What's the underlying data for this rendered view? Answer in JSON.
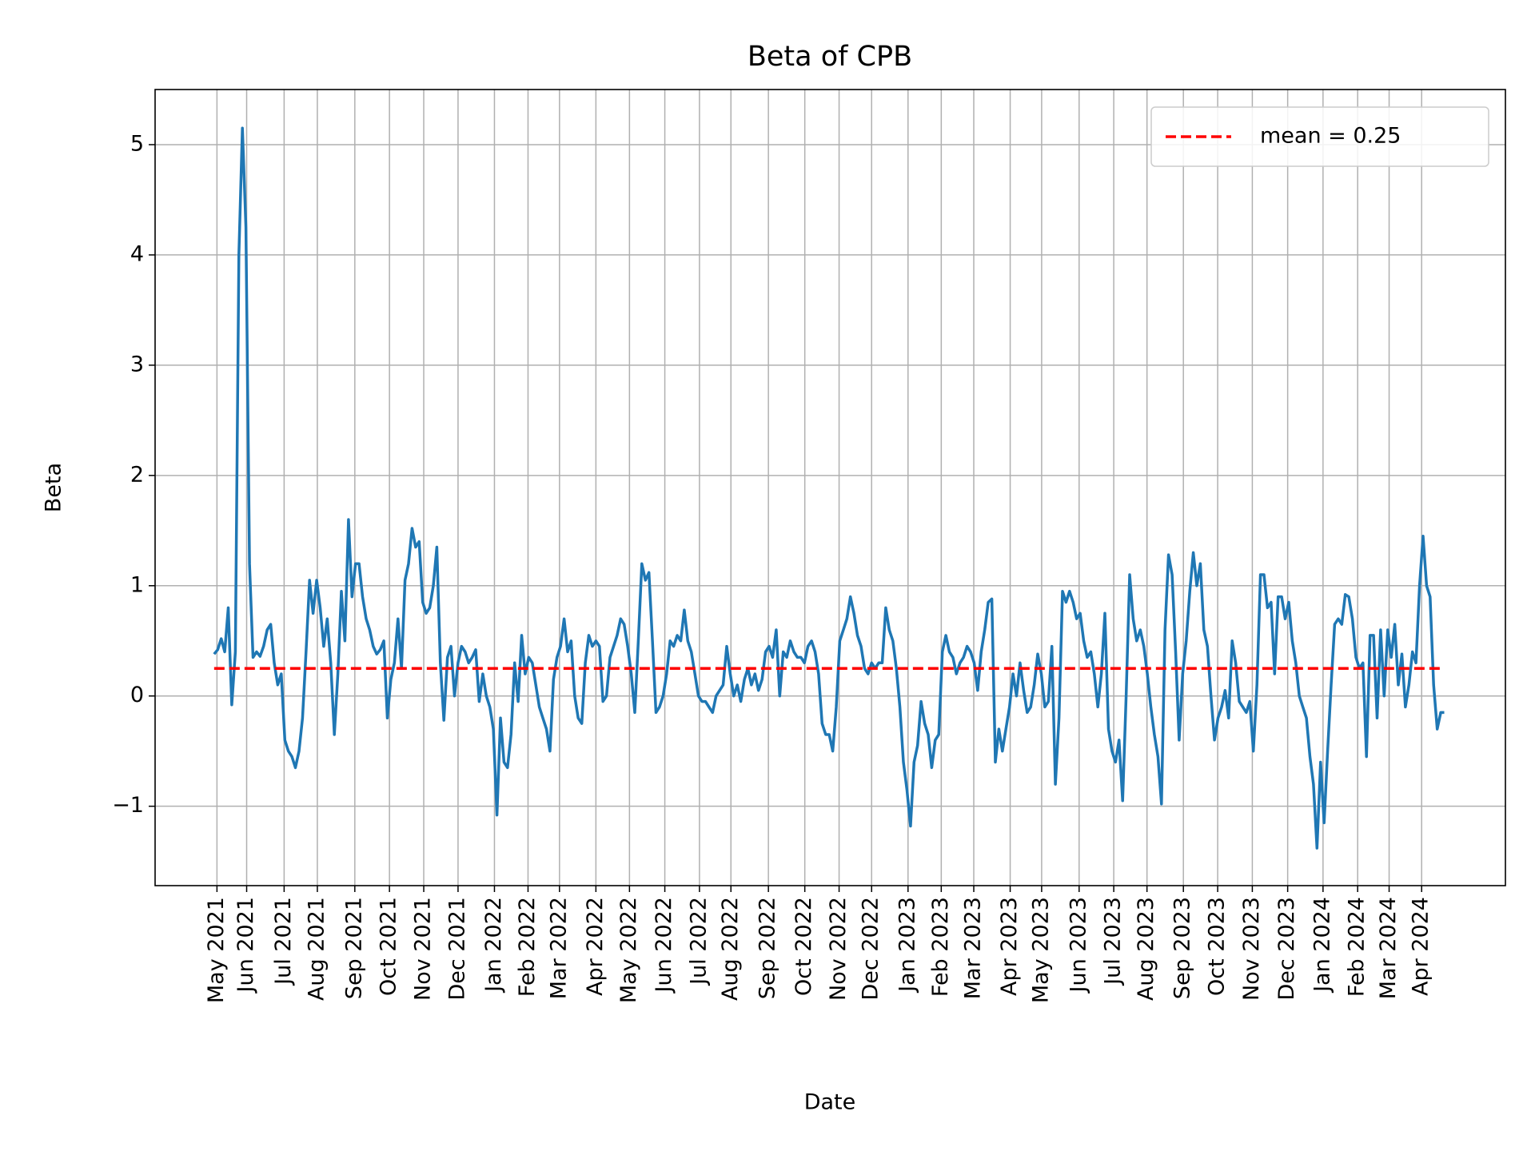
{
  "chart_data": {
    "type": "line",
    "title": "Beta of CPB",
    "xlabel": "Date",
    "ylabel": "Beta",
    "color": "#1f77b4",
    "grid": true,
    "legend": "upper right",
    "mean": {
      "label": "mean = 0.25",
      "value": 0.25,
      "color": "#ff0000"
    },
    "xlim": [
      -16.7,
      365.3
    ],
    "ylim": [
      -1.72,
      5.5
    ],
    "yticks": [
      {
        "value": -1,
        "label": "−1"
      },
      0,
      1,
      2,
      3,
      4,
      5
    ],
    "xticks": [
      {
        "value": 0.8,
        "label": "May 2021"
      },
      {
        "value": 9.2,
        "label": "Jun 2021"
      },
      {
        "value": 19.8,
        "label": "Jul 2021"
      },
      {
        "value": 29.2,
        "label": "Aug 2021"
      },
      {
        "value": 39.8,
        "label": "Sep 2021"
      },
      {
        "value": 49.6,
        "label": "Oct 2021"
      },
      {
        "value": 59.3,
        "label": "Nov 2021"
      },
      {
        "value": 69.0,
        "label": "Dec 2021"
      },
      {
        "value": 79.3,
        "label": "Jan 2022"
      },
      {
        "value": 88.8,
        "label": "Feb 2022"
      },
      {
        "value": 97.7,
        "label": "Mar 2022"
      },
      {
        "value": 108.0,
        "label": "Apr 2022"
      },
      {
        "value": 117.5,
        "label": "May 2022"
      },
      {
        "value": 127.5,
        "label": "Jun 2022"
      },
      {
        "value": 137.3,
        "label": "Jul 2022"
      },
      {
        "value": 146.2,
        "label": "Aug 2022"
      },
      {
        "value": 156.8,
        "label": "Sep 2022"
      },
      {
        "value": 167.1,
        "label": "Oct 2022"
      },
      {
        "value": 176.8,
        "label": "Nov 2022"
      },
      {
        "value": 186.0,
        "label": "Dec 2022"
      },
      {
        "value": 196.3,
        "label": "Jan 2023"
      },
      {
        "value": 205.7,
        "label": "Feb 2023"
      },
      {
        "value": 214.9,
        "label": "Mar 2023"
      },
      {
        "value": 225.2,
        "label": "Apr 2023"
      },
      {
        "value": 234.1,
        "label": "May 2023"
      },
      {
        "value": 244.7,
        "label": "Jun 2023"
      },
      {
        "value": 254.5,
        "label": "Jul 2023"
      },
      {
        "value": 263.9,
        "label": "Aug 2023"
      },
      {
        "value": 274.2,
        "label": "Sep 2023"
      },
      {
        "value": 283.9,
        "label": "Oct 2023"
      },
      {
        "value": 293.7,
        "label": "Nov 2023"
      },
      {
        "value": 303.7,
        "label": "Dec 2023"
      },
      {
        "value": 313.7,
        "label": "Jan 2024"
      },
      {
        "value": 323.5,
        "label": "Feb 2024"
      },
      {
        "value": 332.4,
        "label": "Mar 2024"
      },
      {
        "value": 341.6,
        "label": "Apr 2024"
      }
    ],
    "values": [
      0.38,
      0.42,
      0.52,
      0.4,
      0.8,
      -0.08,
      0.4,
      4.0,
      5.15,
      4.25,
      1.2,
      0.35,
      0.4,
      0.36,
      0.45,
      0.6,
      0.65,
      0.3,
      0.1,
      0.2,
      -0.4,
      -0.5,
      -0.55,
      -0.65,
      -0.5,
      -0.2,
      0.4,
      1.05,
      0.75,
      1.05,
      0.8,
      0.45,
      0.7,
      0.3,
      -0.35,
      0.2,
      0.95,
      0.5,
      1.6,
      0.9,
      1.2,
      1.2,
      0.9,
      0.7,
      0.6,
      0.45,
      0.38,
      0.42,
      0.5,
      -0.2,
      0.15,
      0.3,
      0.7,
      0.25,
      1.05,
      1.2,
      1.52,
      1.35,
      1.4,
      0.85,
      0.75,
      0.8,
      1.0,
      1.35,
      0.3,
      -0.22,
      0.35,
      0.45,
      0.0,
      0.3,
      0.45,
      0.4,
      0.3,
      0.35,
      0.42,
      -0.05,
      0.2,
      0.0,
      -0.1,
      -0.3,
      -1.08,
      -0.2,
      -0.6,
      -0.65,
      -0.35,
      0.3,
      -0.05,
      0.55,
      0.2,
      0.35,
      0.3,
      0.1,
      -0.1,
      -0.2,
      -0.3,
      -0.5,
      0.15,
      0.35,
      0.45,
      0.7,
      0.4,
      0.5,
      0.0,
      -0.2,
      -0.25,
      0.3,
      0.55,
      0.45,
      0.5,
      0.45,
      -0.05,
      0.0,
      0.35,
      0.45,
      0.55,
      0.7,
      0.65,
      0.45,
      0.2,
      -0.15,
      0.5,
      1.2,
      1.05,
      1.12,
      0.5,
      -0.15,
      -0.1,
      0.0,
      0.2,
      0.5,
      0.45,
      0.55,
      0.5,
      0.78,
      0.5,
      0.4,
      0.2,
      0.0,
      -0.05,
      -0.05,
      -0.1,
      -0.15,
      0.0,
      0.05,
      0.1,
      0.45,
      0.2,
      0.0,
      0.1,
      -0.05,
      0.15,
      0.25,
      0.1,
      0.2,
      0.05,
      0.15,
      0.4,
      0.45,
      0.35,
      0.6,
      0.0,
      0.4,
      0.35,
      0.5,
      0.4,
      0.35,
      0.35,
      0.3,
      0.45,
      0.5,
      0.4,
      0.2,
      -0.25,
      -0.35,
      -0.35,
      -0.5,
      -0.1,
      0.5,
      0.6,
      0.7,
      0.9,
      0.75,
      0.55,
      0.45,
      0.25,
      0.2,
      0.3,
      0.25,
      0.3,
      0.3,
      0.8,
      0.6,
      0.5,
      0.25,
      -0.1,
      -0.6,
      -0.85,
      -1.18,
      -0.6,
      -0.45,
      -0.05,
      -0.25,
      -0.35,
      -0.65,
      -0.4,
      -0.35,
      0.4,
      0.55,
      0.4,
      0.35,
      0.2,
      0.3,
      0.35,
      0.45,
      0.4,
      0.3,
      0.05,
      0.4,
      0.6,
      0.85,
      0.88,
      -0.6,
      -0.3,
      -0.5,
      -0.3,
      -0.1,
      0.2,
      0.0,
      0.3,
      0.05,
      -0.15,
      -0.1,
      0.1,
      0.38,
      0.2,
      -0.1,
      -0.05,
      0.45,
      -0.8,
      -0.2,
      0.95,
      0.85,
      0.95,
      0.85,
      0.7,
      0.75,
      0.5,
      0.35,
      0.4,
      0.2,
      -0.1,
      0.2,
      0.75,
      -0.3,
      -0.5,
      -0.6,
      -0.4,
      -0.95,
      0.0,
      1.1,
      0.7,
      0.5,
      0.6,
      0.45,
      0.2,
      -0.1,
      -0.35,
      -0.55,
      -0.98,
      0.6,
      1.28,
      1.1,
      0.4,
      -0.4,
      0.2,
      0.5,
      0.95,
      1.3,
      1.0,
      1.2,
      0.6,
      0.45,
      0.0,
      -0.4,
      -0.2,
      -0.1,
      0.05,
      -0.2,
      0.5,
      0.3,
      -0.05,
      -0.1,
      -0.15,
      -0.05,
      -0.5,
      0.1,
      1.1,
      1.1,
      0.8,
      0.85,
      0.2,
      0.9,
      0.9,
      0.7,
      0.85,
      0.5,
      0.3,
      0.0,
      -0.1,
      -0.2,
      -0.55,
      -0.8,
      -1.38,
      -0.6,
      -1.15,
      -0.5,
      0.1,
      0.65,
      0.7,
      0.65,
      0.92,
      0.9,
      0.7,
      0.35,
      0.25,
      0.3,
      -0.55,
      0.55,
      0.55,
      -0.2,
      0.6,
      0.0,
      0.6,
      0.35,
      0.65,
      0.1,
      0.38,
      -0.1,
      0.1,
      0.4,
      0.3,
      1.0,
      1.45,
      1.0,
      0.9,
      0.1,
      -0.3,
      -0.15,
      -0.15
    ]
  }
}
